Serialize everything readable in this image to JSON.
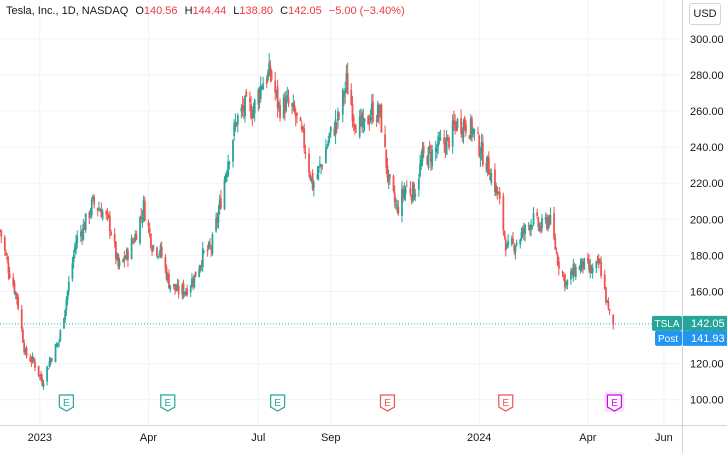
{
  "header": {
    "symbol_title": "Tesla, Inc., 1D, NASDAQ",
    "open_label": "O",
    "open_value": "140.56",
    "high_label": "H",
    "high_value": "144.44",
    "low_label": "L",
    "low_value": "138.80",
    "close_label": "C",
    "close_value": "142.05",
    "change_value": "−5.00 (−3.40%)"
  },
  "currency": "USD",
  "price_tag": {
    "symbol": "TSLA",
    "value": "142.05",
    "post_label": "Post",
    "post_value": "141.93"
  },
  "colors": {
    "up": "#26a69a",
    "down": "#ef5350",
    "grid": "#f0f3fa",
    "earnings_past": "#26a69a",
    "earnings_down": "#ef5350",
    "earnings_upcoming": "#d500f9",
    "post_tag": "#2196f3",
    "price_line": "#26a69a"
  },
  "chart_data": {
    "type": "candlestick",
    "title": "Tesla, Inc., 1D, NASDAQ",
    "ylim": [
      86,
      306
    ],
    "y_ticks": [
      "100.00",
      "120.00",
      "140.00",
      "160.00",
      "180.00",
      "200.00",
      "220.00",
      "240.00",
      "260.00",
      "280.00",
      "300.00"
    ],
    "y_tick_values": [
      100,
      120,
      140,
      160,
      180,
      200,
      220,
      240,
      260,
      280,
      300
    ],
    "x_ticks": [
      {
        "label": "2023",
        "date": "2023-01-03"
      },
      {
        "label": "Apr",
        "date": "2023-04-03"
      },
      {
        "label": "Jul",
        "date": "2023-07-03"
      },
      {
        "label": "Sep",
        "date": "2023-09-01"
      },
      {
        "label": "2024",
        "date": "2024-01-02"
      },
      {
        "label": "Apr",
        "date": "2024-04-01"
      },
      {
        "label": "Jun",
        "date": "2024-06-03"
      }
    ],
    "xlim": [
      "2022-12-01",
      "2024-06-18"
    ],
    "grid": true,
    "close_path": [
      [
        "2022-12-01",
        194
      ],
      [
        "2022-12-08",
        173
      ],
      [
        "2022-12-15",
        157
      ],
      [
        "2022-12-22",
        125
      ],
      [
        "2022-12-29",
        121
      ],
      [
        "2023-01-05",
        110
      ],
      [
        "2023-01-12",
        123
      ],
      [
        "2023-01-19",
        133
      ],
      [
        "2023-01-26",
        160
      ],
      [
        "2023-02-02",
        188
      ],
      [
        "2023-02-09",
        197
      ],
      [
        "2023-02-16",
        209
      ],
      [
        "2023-02-23",
        205
      ],
      [
        "2023-03-02",
        197
      ],
      [
        "2023-03-09",
        173
      ],
      [
        "2023-03-16",
        180
      ],
      [
        "2023-03-23",
        191
      ],
      [
        "2023-03-30",
        207
      ],
      [
        "2023-04-06",
        186
      ],
      [
        "2023-04-13",
        182
      ],
      [
        "2023-04-20",
        165
      ],
      [
        "2023-04-27",
        160
      ],
      [
        "2023-05-04",
        161
      ],
      [
        "2023-05-11",
        168
      ],
      [
        "2023-05-18",
        180
      ],
      [
        "2023-05-25",
        184
      ],
      [
        "2023-06-01",
        207
      ],
      [
        "2023-06-08",
        234
      ],
      [
        "2023-06-15",
        255
      ],
      [
        "2023-06-22",
        262
      ],
      [
        "2023-06-29",
        261
      ],
      [
        "2023-07-06",
        276
      ],
      [
        "2023-07-13",
        281
      ],
      [
        "2023-07-20",
        262
      ],
      [
        "2023-07-27",
        264
      ],
      [
        "2023-08-03",
        257
      ],
      [
        "2023-08-10",
        242
      ],
      [
        "2023-08-17",
        219
      ],
      [
        "2023-08-24",
        230
      ],
      [
        "2023-08-31",
        246
      ],
      [
        "2023-09-07",
        255
      ],
      [
        "2023-09-14",
        276
      ],
      [
        "2023-09-21",
        255
      ],
      [
        "2023-09-28",
        250
      ],
      [
        "2023-10-05",
        260
      ],
      [
        "2023-10-12",
        258
      ],
      [
        "2023-10-19",
        220
      ],
      [
        "2023-10-26",
        205
      ],
      [
        "2023-11-02",
        218
      ],
      [
        "2023-11-09",
        215
      ],
      [
        "2023-11-16",
        234
      ],
      [
        "2023-11-23",
        236
      ],
      [
        "2023-11-30",
        241
      ],
      [
        "2023-12-07",
        243
      ],
      [
        "2023-12-14",
        253
      ],
      [
        "2023-12-21",
        253
      ],
      [
        "2023-12-28",
        249
      ],
      [
        "2024-01-04",
        237
      ],
      [
        "2024-01-11",
        227
      ],
      [
        "2024-01-18",
        212
      ],
      [
        "2024-01-25",
        183
      ],
      [
        "2024-02-01",
        187
      ],
      [
        "2024-02-08",
        193
      ],
      [
        "2024-02-15",
        200
      ],
      [
        "2024-02-22",
        195
      ],
      [
        "2024-02-29",
        201
      ],
      [
        "2024-03-07",
        178
      ],
      [
        "2024-03-14",
        164
      ],
      [
        "2024-03-21",
        172
      ],
      [
        "2024-03-28",
        175
      ],
      [
        "2024-04-04",
        171
      ],
      [
        "2024-04-11",
        175
      ],
      [
        "2024-04-18",
        149
      ],
      [
        "2024-04-22",
        142
      ]
    ],
    "last_close": 142.05,
    "post_market": 141.93,
    "earnings": [
      {
        "date": "2023-01-25",
        "label": "E",
        "kind": "past"
      },
      {
        "date": "2023-04-19",
        "label": "E",
        "kind": "past"
      },
      {
        "date": "2023-07-19",
        "label": "E",
        "kind": "past"
      },
      {
        "date": "2023-10-18",
        "label": "E",
        "kind": "down"
      },
      {
        "date": "2024-01-24",
        "label": "E",
        "kind": "down"
      },
      {
        "date": "2024-04-23",
        "label": "E",
        "kind": "upcoming"
      }
    ]
  }
}
